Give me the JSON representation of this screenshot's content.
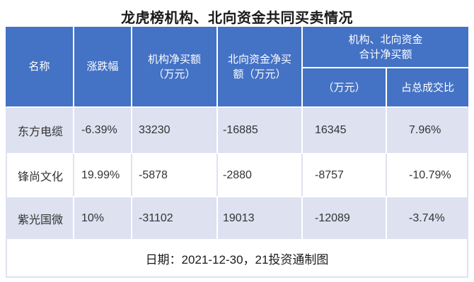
{
  "title": "龙虎榜机构、北向资金共同买卖情况",
  "headers": {
    "name": "名称",
    "change": "涨跌幅",
    "inst": "机构净买额\n（万元）",
    "north": "北向资金净买\n额（万元）",
    "group": "机构、北向资金\n合计净买额",
    "group_wan": "（万元）",
    "group_ratio": "占总成交比"
  },
  "footer": "日期：2021-12-30，21投资通制图",
  "colors": {
    "header_bg": "#4472c4",
    "header_text": "#ffffff",
    "stripe_bg": "#dde1f0",
    "row_bg": "#ffffff",
    "divider": "#dfe2f0",
    "body_text": "#333333"
  },
  "chart_data": {
    "type": "table",
    "title": "龙虎榜机构、北向资金共同买卖情况",
    "columns": [
      "名称",
      "涨跌幅",
      "机构净买额（万元）",
      "北向资金净买额（万元）",
      "机构、北向资金合计净买额（万元）",
      "机构、北向资金合计净买额占总成交比"
    ],
    "rows": [
      [
        "东方电缆",
        "-6.39%",
        "33230",
        "-16885",
        "16345",
        "7.96%"
      ],
      [
        "锋尚文化",
        "19.99%",
        "-5878",
        "-2880",
        "-8757",
        "-10.79%"
      ],
      [
        "紫光国微",
        "10%",
        "-31102",
        "19013",
        "-12089",
        "-3.74%"
      ]
    ],
    "note": "日期：2021-12-30，21投资通制图"
  }
}
